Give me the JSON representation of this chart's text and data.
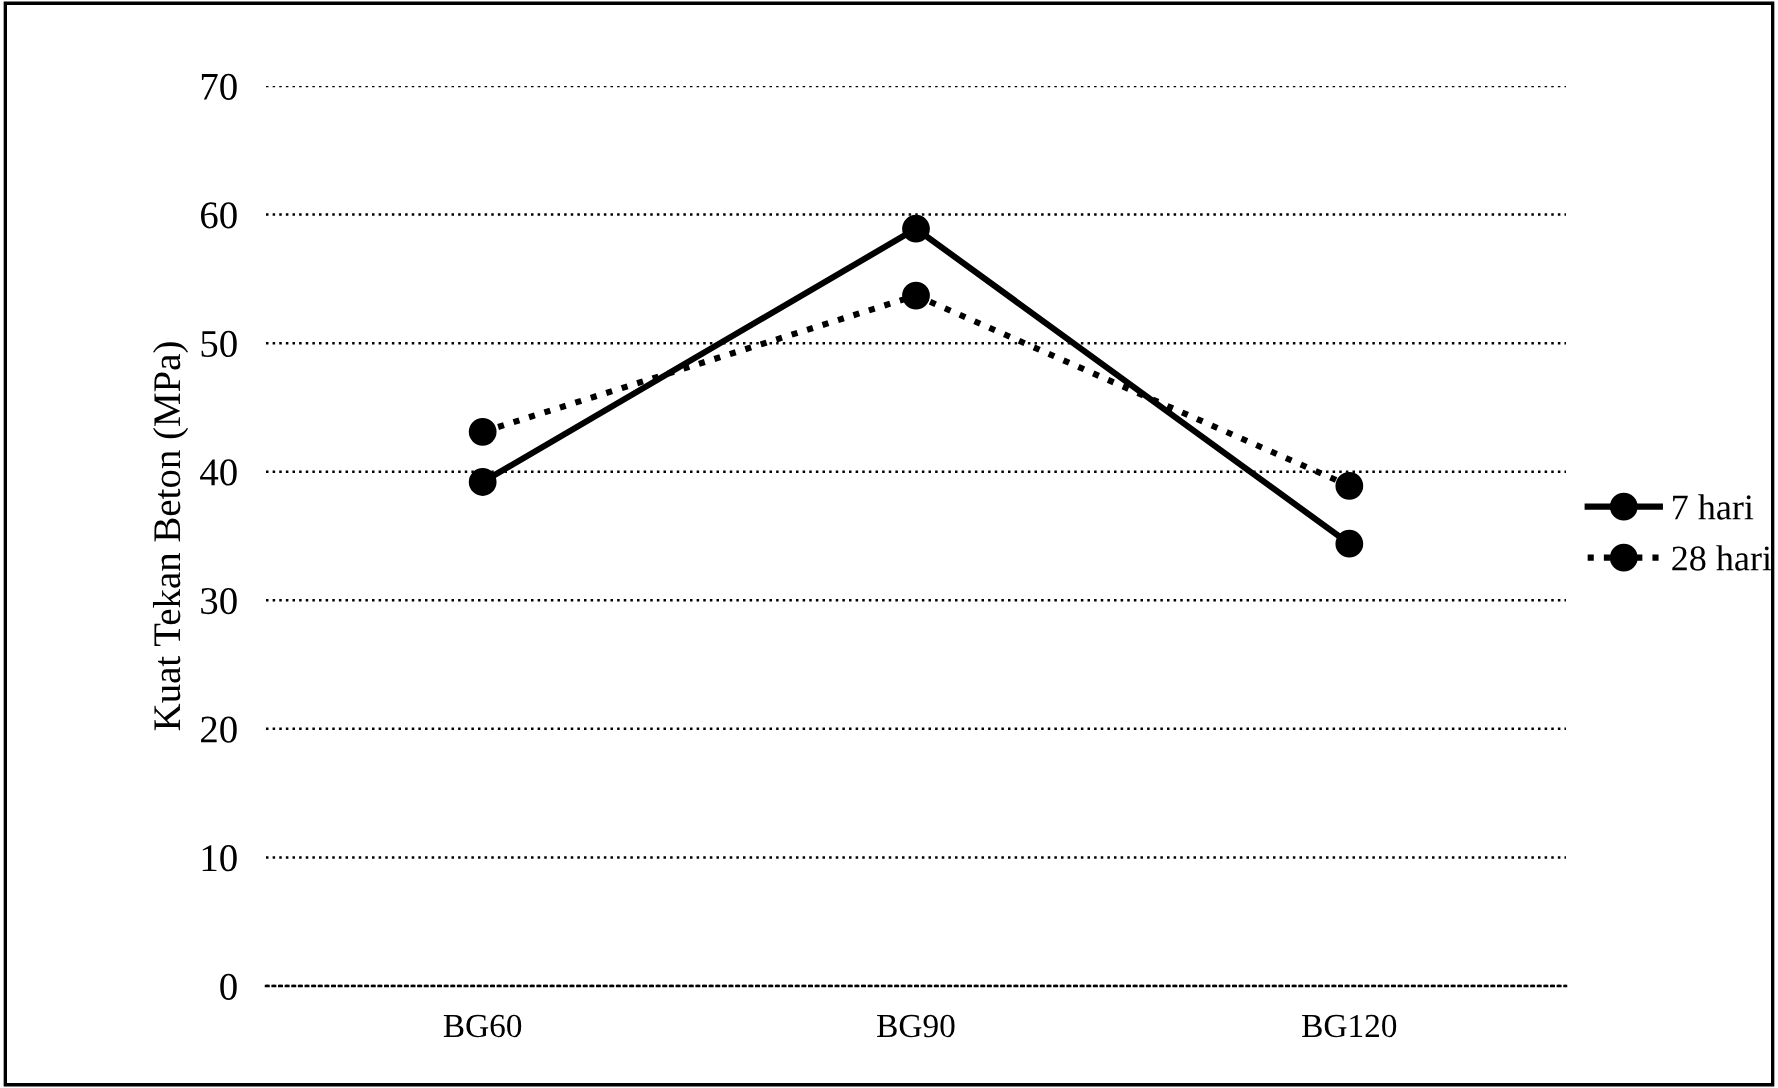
{
  "chart_data": {
    "type": "line",
    "ylabel": "Kuat Tekan Beton (MPa)",
    "categories": [
      "BG60",
      "BG90",
      "BG120"
    ],
    "series": [
      {
        "name": "7 hari",
        "color": "#000000",
        "values": [
          39.2,
          58.9,
          34.4
        ],
        "line_style": "solid"
      },
      {
        "name": "28 hari",
        "color": "#000000",
        "values": [
          43.1,
          53.7,
          38.9
        ],
        "line_style": "dotted"
      }
    ],
    "ylim": [
      0,
      70
    ],
    "yticks": [
      0,
      10,
      20,
      30,
      40,
      50,
      60,
      70
    ],
    "grid": "y",
    "legend": "right",
    "marker": "circle"
  }
}
